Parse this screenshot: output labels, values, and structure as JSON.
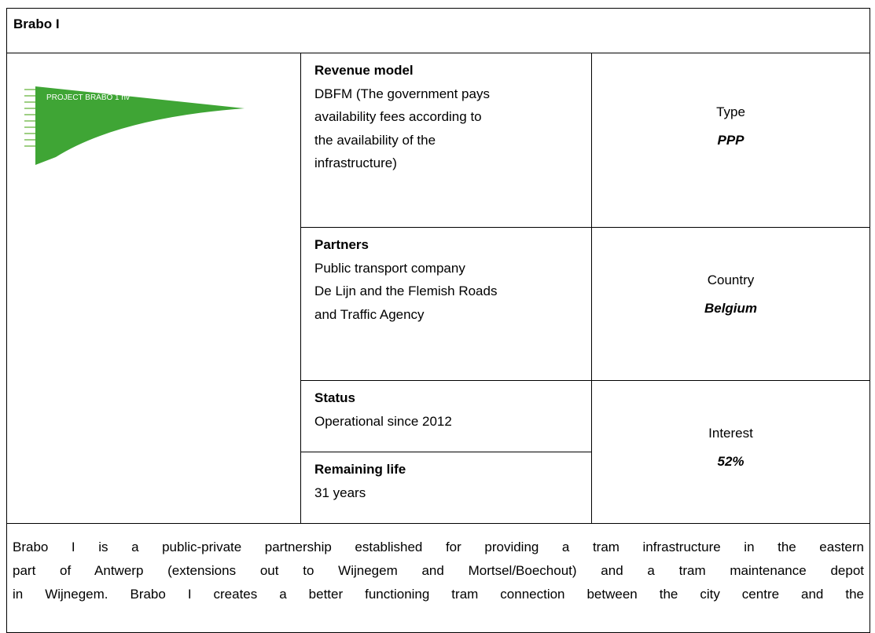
{
  "header": {
    "title": "Brabo I"
  },
  "logo": {
    "text": "PROJECT BRABO 1 nv"
  },
  "details": [
    {
      "label": "Revenue model",
      "lines": [
        "DBFM (The government pays",
        "availability fees according to",
        "the availability of the",
        "infrastructure)"
      ]
    },
    {
      "label": "Partners",
      "lines": [
        "Public transport company",
        "De Lijn and the Flemish Roads",
        "and Traffic Agency"
      ]
    },
    {
      "label": "Status",
      "lines": [
        "Operational since 2012"
      ]
    },
    {
      "label": "Remaining life",
      "lines": [
        "31 years"
      ]
    }
  ],
  "summary": [
    {
      "label": "Type",
      "value": "PPP"
    },
    {
      "label": "Country",
      "value": "Belgium"
    },
    {
      "label": "Interest",
      "value": "52%"
    }
  ],
  "description": [
    "Brabo I is a public-private partnership established for providing a tram infrastructure in the eastern",
    "part of Antwerp (extensions out to Wijnegem and Mortsel/Boechout) and a tram maintenance depot",
    "in Wijnegem. Brabo I creates a better functioning tram connection between the city centre and the"
  ]
}
